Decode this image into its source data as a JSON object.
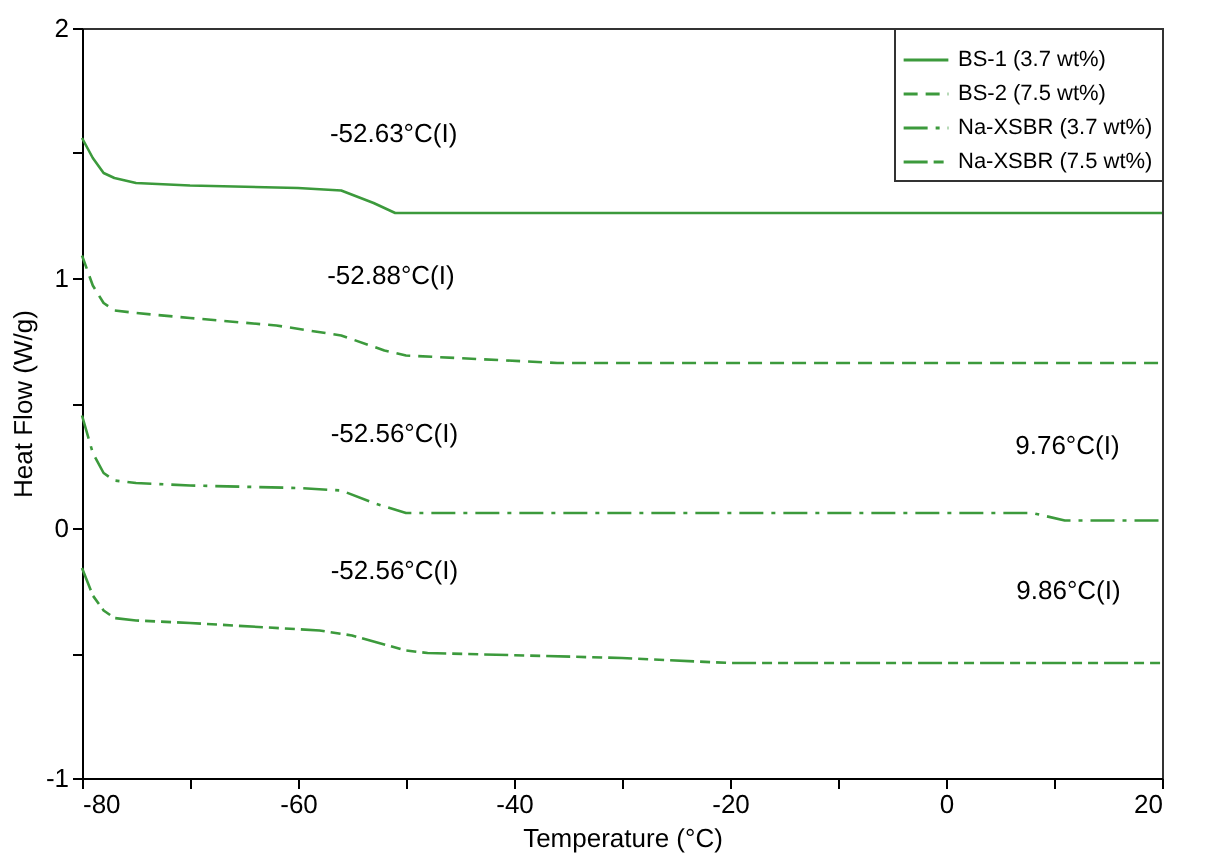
{
  "chart_data": {
    "type": "line",
    "xlabel": "Temperature (°C)",
    "ylabel": "Heat Flow (W/g)",
    "xlim": [
      -80,
      20
    ],
    "xticks": [
      -80,
      {
        "value": -70,
        "label": null
      },
      -60,
      {
        "value": -50,
        "label": null
      },
      -40,
      {
        "value": -30,
        "label": null
      },
      -20,
      {
        "value": -10,
        "label": null
      },
      0,
      {
        "value": 10,
        "label": null
      },
      20
    ],
    "ylim": [
      -1,
      2
    ],
    "yticks": [
      -1,
      {
        "value": -0.5,
        "label": null
      },
      0,
      {
        "value": 0.5,
        "label": null
      },
      1,
      {
        "value": 1.5,
        "label": null
      },
      2
    ],
    "grid": false,
    "legend": "top right",
    "series": [
      {
        "name": "BS-1 (3.7 wt%)",
        "color": "#3c9a3c",
        "line_style": "solid",
        "x": [
          -80,
          -79,
          -78,
          -77,
          -75,
          -70,
          -60,
          -56,
          -53,
          -51,
          -40,
          -20,
          0,
          20
        ],
        "values": [
          1.56,
          1.48,
          1.42,
          1.4,
          1.38,
          1.37,
          1.36,
          1.35,
          1.3,
          1.26,
          1.26,
          1.26,
          1.26,
          1.26
        ]
      },
      {
        "name": "BS-2 (7.5 wt%)",
        "color": "#3c9a3c",
        "line_style": "dashed",
        "x": [
          -80,
          -79,
          -78,
          -77,
          -75,
          -70,
          -62,
          -56,
          -52,
          -50,
          -36,
          -20,
          0,
          20
        ],
        "values": [
          1.09,
          0.97,
          0.9,
          0.87,
          0.86,
          0.84,
          0.81,
          0.77,
          0.71,
          0.69,
          0.66,
          0.66,
          0.66,
          0.66
        ]
      },
      {
        "name": "Na-XSBR (3.7 wt%)",
        "color": "#3c9a3c",
        "line_style": "dashdot",
        "x": [
          -80,
          -79,
          -78,
          -77,
          -75,
          -70,
          -60,
          -56,
          -53,
          -50,
          -37,
          -20,
          0,
          8,
          11,
          20
        ],
        "values": [
          0.45,
          0.3,
          0.22,
          0.19,
          0.18,
          0.17,
          0.16,
          0.15,
          0.1,
          0.06,
          0.06,
          0.06,
          0.06,
          0.06,
          0.03,
          0.03
        ]
      },
      {
        "name": "Na-XSBR (7.5 wt%)",
        "color": "#3c9a3c",
        "line_style": "longdash",
        "x": [
          -80,
          -79,
          -78,
          -77,
          -75,
          -70,
          -58,
          -55,
          -50,
          -48,
          -30,
          -20,
          0,
          20
        ],
        "values": [
          -0.16,
          -0.27,
          -0.33,
          -0.36,
          -0.37,
          -0.38,
          -0.41,
          -0.43,
          -0.49,
          -0.5,
          -0.52,
          -0.54,
          -0.54,
          -0.54
        ]
      }
    ],
    "annotations": [
      {
        "text": "-52.63°C(I)",
        "x": -52.63,
        "y": 1.29
      },
      {
        "text": "-52.88°C(I)",
        "x": -52.88,
        "y": 0.72
      },
      {
        "text": "-52.56°C(I)",
        "x": -52.56,
        "y": 0.09
      },
      {
        "text": "9.76°C(I)",
        "x": 9.76,
        "y": 0.04
      },
      {
        "text": "-52.56°C(I)",
        "x": -52.56,
        "y": -0.46
      },
      {
        "text": "9.86°C(I)",
        "x": 9.86,
        "y": -0.54
      }
    ]
  }
}
